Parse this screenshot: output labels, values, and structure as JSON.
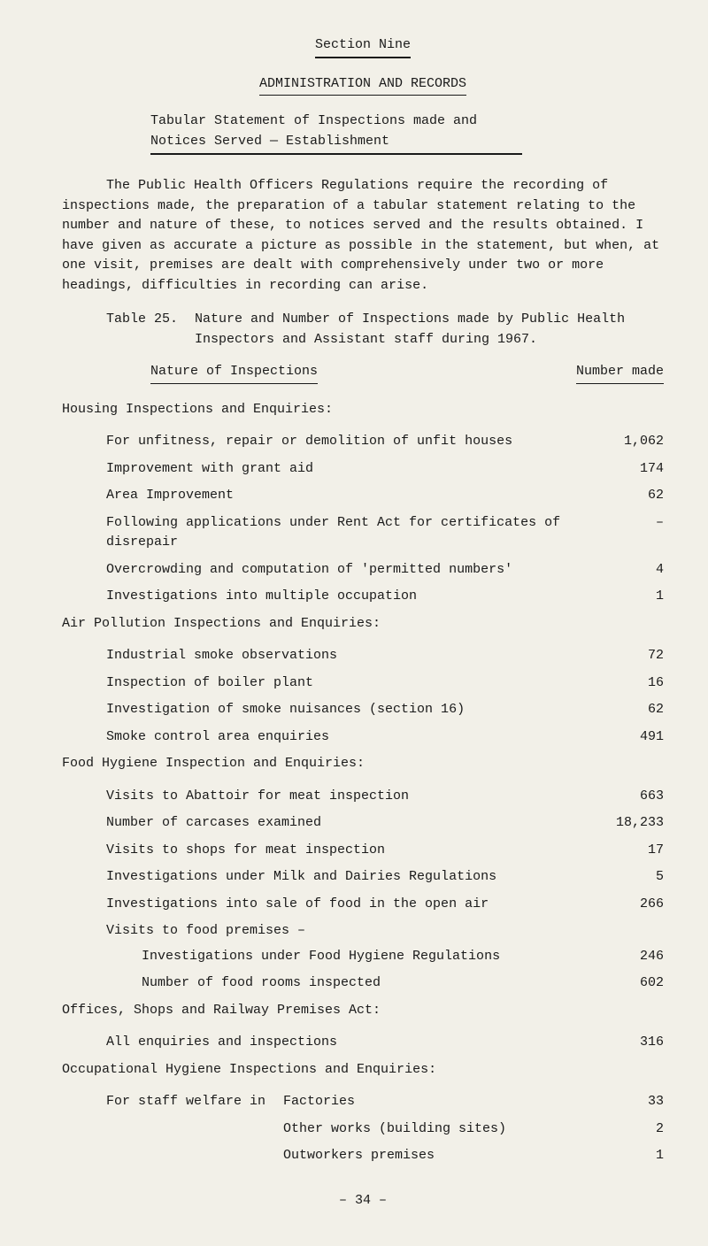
{
  "section_label": "Section Nine",
  "title": "ADMINISTRATION AND RECORDS",
  "tabular_statement": "Tabular Statement of Inspections made and Notices Served — Establishment",
  "intro": "The Public Health Officers Regulations require the recording of inspections made, the preparation of a tabular statement relating to the number and nature of these, to notices served and the results obtained.  I have given as accurate a picture as possible in the statement, but when, at one visit, premises are dealt with comprehensively under two or more headings, difficulties in recording can arise.",
  "table_label": "Table 25.",
  "table_caption": "Nature and Number of Inspections made by Public Health Inspectors and Assistant staff during 1967.",
  "col_nature": "Nature of Inspections",
  "col_number": "Number made",
  "groups": {
    "housing": {
      "heading": "Housing Inspections and Enquiries:",
      "rows": [
        {
          "label": "For unfitness, repair or demolition of unfit houses",
          "value": "1,062"
        },
        {
          "label": "Improvement with grant aid",
          "value": "174"
        },
        {
          "label": "Area Improvement",
          "value": "62"
        },
        {
          "label": "Following applications under Rent Act for certificates of disrepair",
          "value": "–"
        },
        {
          "label": "Overcrowding and computation of 'permitted numbers'",
          "value": "4"
        },
        {
          "label": "Investigations into multiple occupation",
          "value": "1"
        }
      ]
    },
    "air": {
      "heading": "Air Pollution Inspections and Enquiries:",
      "rows": [
        {
          "label": "Industrial smoke observations",
          "value": "72"
        },
        {
          "label": "Inspection of boiler plant",
          "value": "16"
        },
        {
          "label": "Investigation of smoke nuisances (section 16)",
          "value": "62"
        },
        {
          "label": "Smoke control area enquiries",
          "value": "491"
        }
      ]
    },
    "food": {
      "heading": "Food Hygiene Inspection and Enquiries:",
      "rows": [
        {
          "label": "Visits to Abattoir for meat inspection",
          "value": "663"
        },
        {
          "label": "Number of carcases examined",
          "value": "18,233"
        },
        {
          "label": "Visits to shops for meat inspection",
          "value": "17"
        },
        {
          "label": "Investigations under Milk and Dairies Regulations",
          "value": "5"
        },
        {
          "label": "Investigations into sale of food in the open air",
          "value": "266"
        }
      ],
      "subheader": "Visits to food premises –",
      "subrows": [
        {
          "label": "Investigations under Food Hygiene Regulations",
          "value": "246"
        },
        {
          "label": "Number of food rooms inspected",
          "value": "602"
        }
      ]
    },
    "offices": {
      "heading": "Offices, Shops and Railway Premises Act:",
      "rows": [
        {
          "label": "All enquiries and inspections",
          "value": "316"
        }
      ]
    },
    "occupational": {
      "heading": "Occupational Hygiene Inspections and Enquiries:",
      "lead": "For staff welfare in",
      "rows": [
        {
          "label": "Factories",
          "value": "33"
        },
        {
          "label": "Other works (building sites)",
          "value": "2"
        },
        {
          "label": "Outworkers premises",
          "value": "1"
        }
      ]
    }
  },
  "page_number": "– 34 –"
}
